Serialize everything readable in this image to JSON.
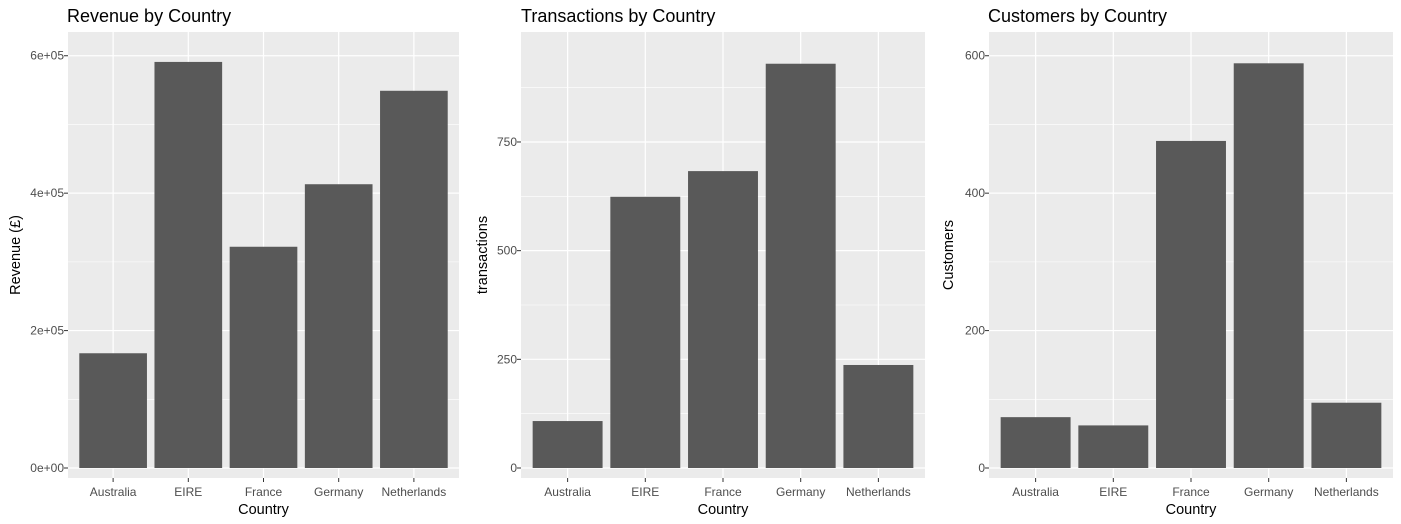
{
  "chart_data": [
    {
      "type": "bar",
      "title": "Revenue by Country",
      "xlabel": "Country",
      "ylabel": "Revenue (£)",
      "categories": [
        "Australia",
        "EIRE",
        "France",
        "Germany",
        "Netherlands"
      ],
      "values": [
        167000,
        591000,
        322000,
        413000,
        549000
      ],
      "ylim": [
        0,
        620000
      ],
      "yticks": [
        0,
        200000,
        400000,
        600000
      ],
      "ytick_labels": [
        "0e+00",
        "2e+05",
        "4e+05",
        "6e+05"
      ],
      "grid": true
    },
    {
      "type": "bar",
      "title": "Transactions by Country",
      "xlabel": "Country",
      "ylabel": "transactions",
      "categories": [
        "Australia",
        "EIRE",
        "France",
        "Germany",
        "Netherlands"
      ],
      "values": [
        108,
        624,
        683,
        930,
        237
      ],
      "ylim": [
        0,
        980
      ],
      "yticks": [
        0,
        250,
        500,
        750
      ],
      "ytick_labels": [
        "0",
        "250",
        "500",
        "750"
      ],
      "grid": true
    },
    {
      "type": "bar",
      "title": "Customers by Country",
      "xlabel": "Country",
      "ylabel": "Customers",
      "categories": [
        "Australia",
        "EIRE",
        "France",
        "Germany",
        "Netherlands"
      ],
      "values": [
        74,
        62,
        476,
        589,
        95
      ],
      "ylim": [
        0,
        620
      ],
      "yticks": [
        0,
        200,
        400,
        600
      ],
      "ytick_labels": [
        "0",
        "200",
        "400",
        "600"
      ],
      "grid": true
    }
  ],
  "colors": {
    "panel_bg": "#ebebeb",
    "grid": "#ffffff",
    "bar": "#595959",
    "tick_text": "#4d4d4d"
  }
}
